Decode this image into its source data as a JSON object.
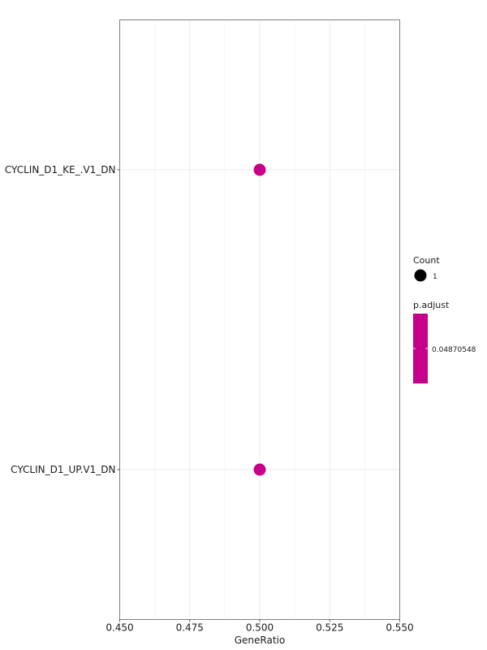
{
  "chart_data": {
    "type": "scatter",
    "xlabel": "GeneRatio",
    "ylabel": "",
    "xlim": [
      0.45,
      0.55
    ],
    "x_ticks": [
      "0.450",
      "0.475",
      "0.500",
      "0.525",
      "0.550"
    ],
    "x_tick_values": [
      0.45,
      0.475,
      0.5,
      0.525,
      0.55
    ],
    "categories": [
      "CYCLIN_D1_KE_.V1_DN",
      "CYCLIN_D1_UP.V1_DN"
    ],
    "points": [
      {
        "category": "CYCLIN_D1_KE_.V1_DN",
        "x": 0.5,
        "count": 1,
        "p_adjust": 0.04870548
      },
      {
        "category": "CYCLIN_D1_UP.V1_DN",
        "x": 0.5,
        "count": 1,
        "p_adjust": 0.04870548
      }
    ],
    "grid": true,
    "legend_position": "right",
    "legend": {
      "size_title": "Count",
      "size_label": "1",
      "color_title": "p.adjust",
      "color_label": "0.04870548"
    },
    "colors": {
      "point": "#C7008B",
      "colorbar": "#C7008B",
      "grid": "#ebebeb",
      "panel_border": "#7f7f7f"
    }
  }
}
